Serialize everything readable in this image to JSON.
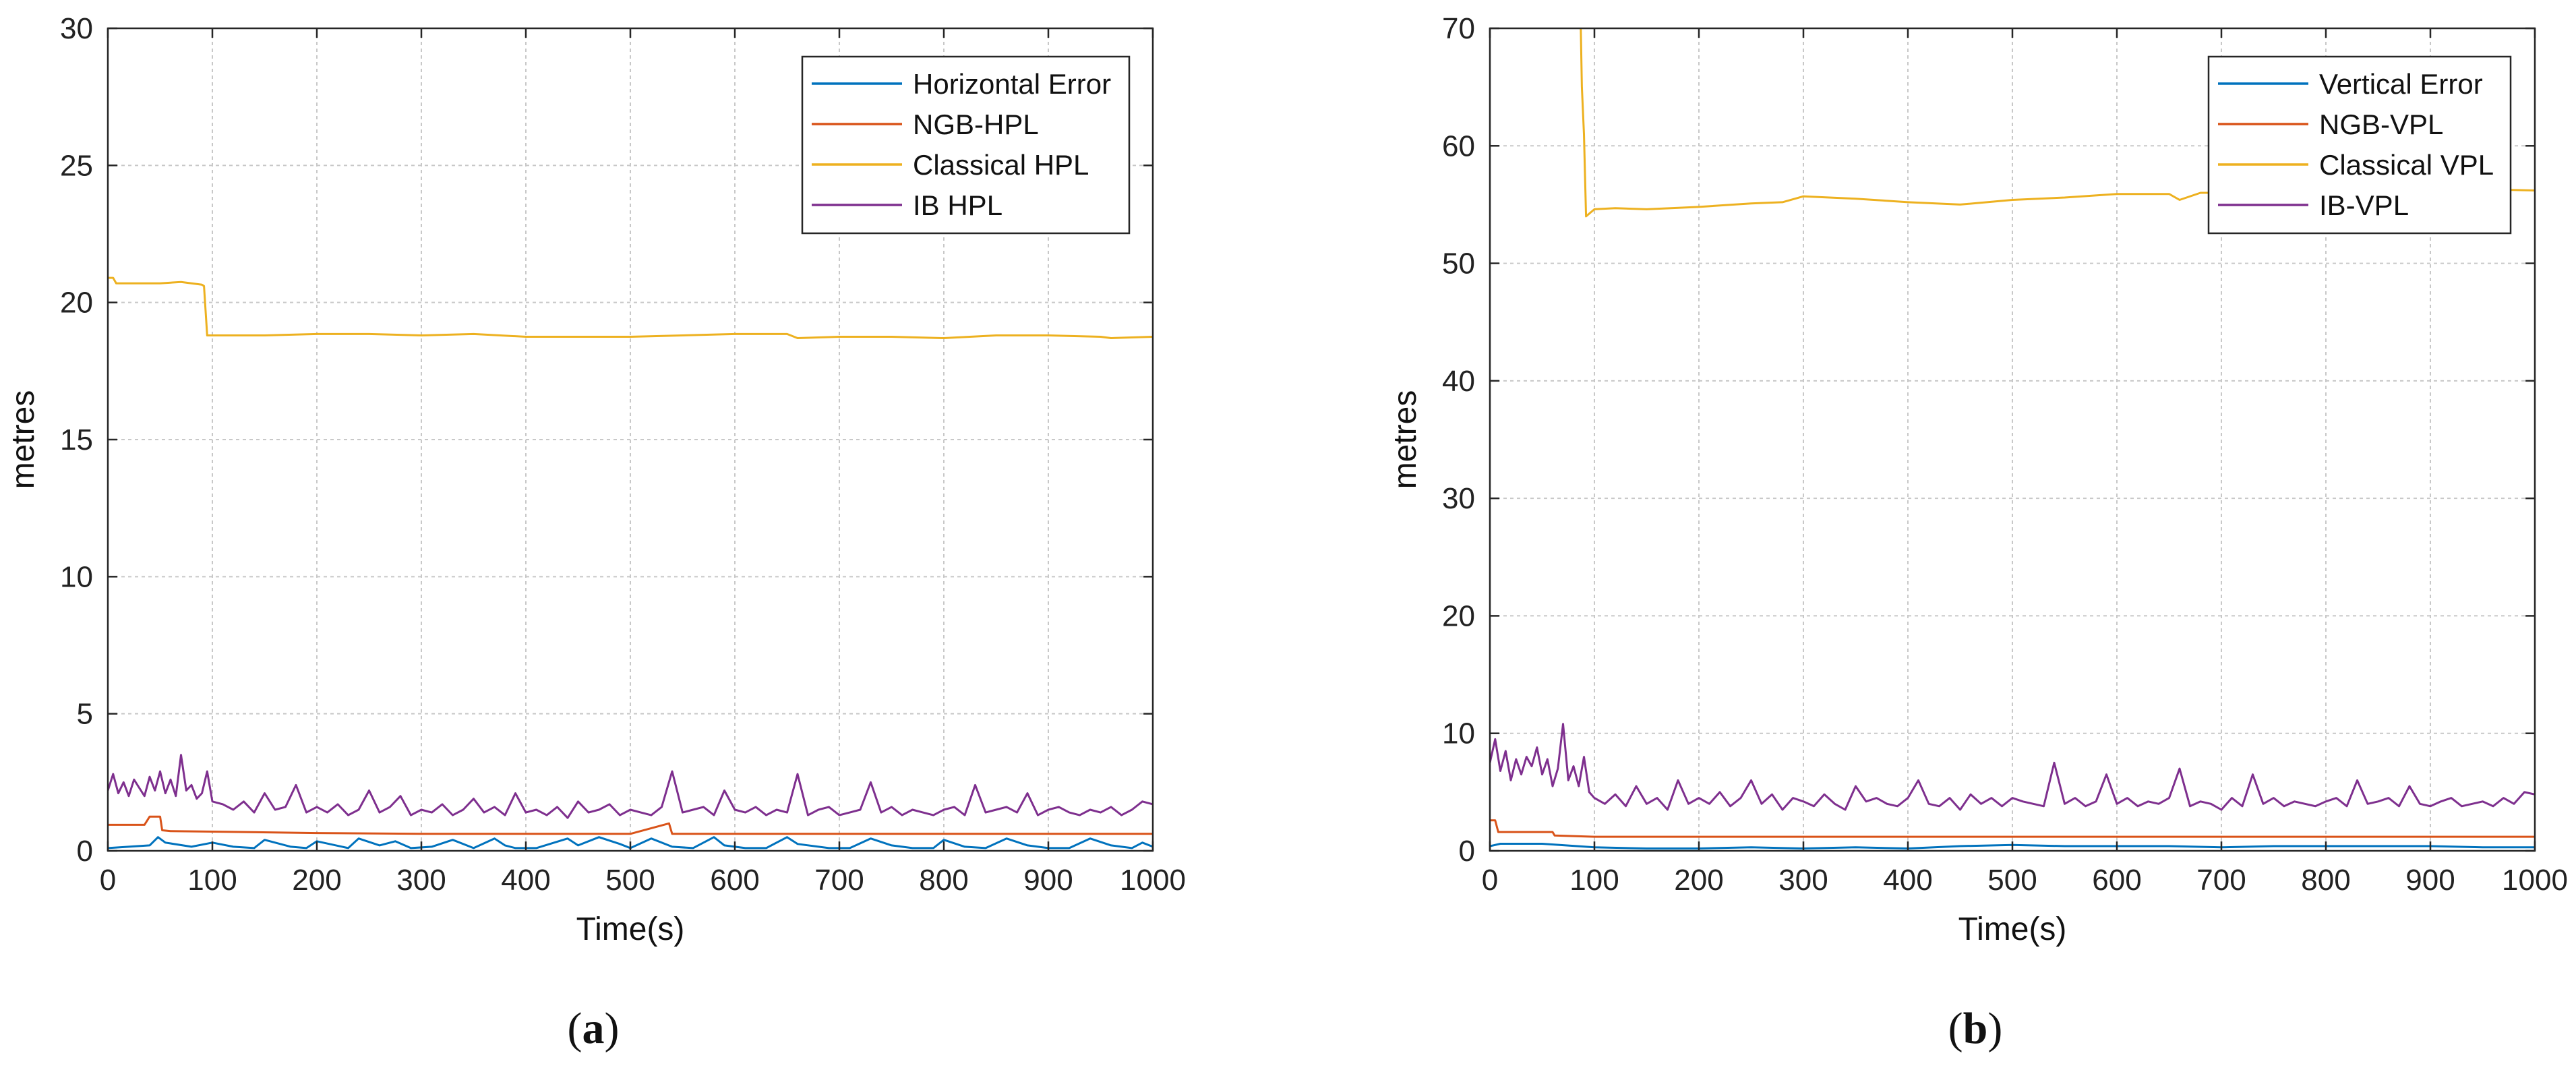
{
  "colors": {
    "error": "#0072BD",
    "ngb": "#D95319",
    "classical": "#EDB120",
    "ib": "#7E2F8E",
    "grid": "#c8c8c8",
    "axis": "#262626"
  },
  "chart_data": [
    {
      "type": "line",
      "label": "(a)",
      "label_letter": "a",
      "xlabel": "Time(s)",
      "ylabel": "metres",
      "xlim": [
        0,
        1000
      ],
      "ylim": [
        0,
        30
      ],
      "xticks": [
        0,
        100,
        200,
        300,
        400,
        500,
        600,
        700,
        800,
        900,
        1000
      ],
      "yticks": [
        0,
        5,
        10,
        15,
        20,
        25,
        30
      ],
      "grid": true,
      "legend_position": "top-right",
      "series": [
        {
          "name": "Horizontal Error",
          "color_key": "error",
          "x": [
            0,
            20,
            40,
            48,
            55,
            80,
            100,
            120,
            140,
            150,
            175,
            190,
            200,
            230,
            240,
            260,
            275,
            290,
            310,
            330,
            350,
            370,
            380,
            390,
            410,
            440,
            450,
            470,
            490,
            500,
            520,
            540,
            560,
            580,
            590,
            610,
            630,
            650,
            660,
            690,
            710,
            730,
            750,
            770,
            790,
            800,
            820,
            840,
            860,
            880,
            900,
            920,
            940,
            960,
            980,
            990,
            1000
          ],
          "values": [
            0.1,
            0.15,
            0.2,
            0.5,
            0.3,
            0.15,
            0.3,
            0.15,
            0.1,
            0.4,
            0.15,
            0.1,
            0.35,
            0.1,
            0.45,
            0.2,
            0.35,
            0.1,
            0.15,
            0.4,
            0.1,
            0.45,
            0.2,
            0.1,
            0.1,
            0.45,
            0.2,
            0.5,
            0.25,
            0.1,
            0.45,
            0.15,
            0.1,
            0.5,
            0.2,
            0.1,
            0.1,
            0.5,
            0.25,
            0.1,
            0.1,
            0.45,
            0.2,
            0.1,
            0.1,
            0.4,
            0.15,
            0.1,
            0.45,
            0.2,
            0.1,
            0.1,
            0.45,
            0.2,
            0.1,
            0.3,
            0.15
          ]
        },
        {
          "name": "NGB-HPL",
          "color_key": "ngb",
          "x": [
            0,
            5,
            35,
            40,
            50,
            52,
            60,
            100,
            200,
            300,
            400,
            500,
            537,
            540,
            600,
            700,
            800,
            900,
            1000
          ],
          "values": [
            0.95,
            0.95,
            0.95,
            1.25,
            1.25,
            0.75,
            0.72,
            0.7,
            0.65,
            0.62,
            0.62,
            0.62,
            1.0,
            0.62,
            0.62,
            0.62,
            0.62,
            0.62,
            0.62
          ]
        },
        {
          "name": "Classical HPL",
          "color_key": "classical",
          "x": [
            0,
            5,
            8,
            30,
            50,
            70,
            90,
            92,
            95,
            150,
            200,
            250,
            300,
            350,
            400,
            450,
            500,
            550,
            600,
            650,
            660,
            700,
            750,
            800,
            850,
            900,
            950,
            960,
            1000
          ],
          "values": [
            20.9,
            20.9,
            20.7,
            20.7,
            20.7,
            20.75,
            20.65,
            20.6,
            18.8,
            18.8,
            18.85,
            18.85,
            18.8,
            18.85,
            18.75,
            18.75,
            18.75,
            18.8,
            18.85,
            18.85,
            18.7,
            18.75,
            18.75,
            18.7,
            18.8,
            18.8,
            18.75,
            18.7,
            18.75
          ]
        },
        {
          "name": "IB HPL",
          "color_key": "ib",
          "x": [
            0,
            5,
            10,
            15,
            20,
            25,
            30,
            35,
            40,
            45,
            50,
            55,
            60,
            65,
            70,
            75,
            80,
            85,
            90,
            95,
            100,
            110,
            120,
            130,
            140,
            150,
            160,
            170,
            180,
            190,
            200,
            210,
            220,
            230,
            240,
            250,
            260,
            270,
            280,
            290,
            300,
            310,
            320,
            330,
            340,
            350,
            360,
            370,
            380,
            390,
            400,
            410,
            420,
            430,
            440,
            450,
            460,
            470,
            480,
            490,
            500,
            510,
            520,
            530,
            540,
            550,
            560,
            570,
            580,
            590,
            600,
            610,
            620,
            630,
            640,
            650,
            660,
            670,
            680,
            690,
            700,
            710,
            720,
            730,
            740,
            750,
            760,
            770,
            780,
            790,
            800,
            810,
            820,
            830,
            840,
            850,
            860,
            870,
            880,
            890,
            900,
            910,
            920,
            930,
            940,
            950,
            960,
            970,
            980,
            990,
            1000
          ],
          "values": [
            2.2,
            2.8,
            2.1,
            2.5,
            2.0,
            2.6,
            2.3,
            2.0,
            2.7,
            2.2,
            2.9,
            2.1,
            2.6,
            2.0,
            3.5,
            2.2,
            2.4,
            1.9,
            2.1,
            2.9,
            1.8,
            1.7,
            1.5,
            1.8,
            1.4,
            2.1,
            1.5,
            1.6,
            2.4,
            1.4,
            1.6,
            1.4,
            1.7,
            1.3,
            1.5,
            2.2,
            1.4,
            1.6,
            2.0,
            1.3,
            1.5,
            1.4,
            1.7,
            1.3,
            1.5,
            1.9,
            1.4,
            1.6,
            1.3,
            2.1,
            1.4,
            1.5,
            1.3,
            1.6,
            1.2,
            1.8,
            1.4,
            1.5,
            1.7,
            1.3,
            1.5,
            1.4,
            1.3,
            1.6,
            2.9,
            1.4,
            1.5,
            1.6,
            1.3,
            2.2,
            1.5,
            1.4,
            1.6,
            1.3,
            1.5,
            1.4,
            2.8,
            1.3,
            1.5,
            1.6,
            1.3,
            1.4,
            1.5,
            2.5,
            1.4,
            1.6,
            1.3,
            1.5,
            1.4,
            1.3,
            1.5,
            1.6,
            1.3,
            2.4,
            1.4,
            1.5,
            1.6,
            1.4,
            2.1,
            1.3,
            1.5,
            1.6,
            1.4,
            1.3,
            1.5,
            1.4,
            1.6,
            1.3,
            1.5,
            1.8,
            1.7
          ]
        }
      ]
    },
    {
      "type": "line",
      "label": "(b)",
      "label_letter": "b",
      "xlabel": "Time(s)",
      "ylabel": "metres",
      "xlim": [
        0,
        1000
      ],
      "ylim": [
        0,
        70
      ],
      "xticks": [
        0,
        100,
        200,
        300,
        400,
        500,
        600,
        700,
        800,
        900,
        1000
      ],
      "yticks": [
        0,
        10,
        20,
        30,
        40,
        50,
        60,
        70
      ],
      "grid": true,
      "legend_position": "top-right",
      "series": [
        {
          "name": "Vertical Error",
          "color_key": "error",
          "x": [
            0,
            10,
            50,
            100,
            150,
            200,
            250,
            300,
            350,
            400,
            450,
            500,
            550,
            600,
            650,
            700,
            750,
            800,
            850,
            900,
            950,
            1000
          ],
          "values": [
            0.4,
            0.6,
            0.6,
            0.3,
            0.2,
            0.2,
            0.3,
            0.2,
            0.3,
            0.2,
            0.4,
            0.5,
            0.4,
            0.4,
            0.4,
            0.3,
            0.4,
            0.4,
            0.4,
            0.4,
            0.3,
            0.3
          ]
        },
        {
          "name": "NGB-VPL",
          "color_key": "ngb",
          "x": [
            0,
            5,
            8,
            60,
            62,
            100,
            200,
            300,
            400,
            500,
            600,
            700,
            800,
            900,
            1000
          ],
          "values": [
            2.6,
            2.6,
            1.6,
            1.6,
            1.3,
            1.2,
            1.2,
            1.2,
            1.2,
            1.2,
            1.2,
            1.2,
            1.2,
            1.2,
            1.2
          ]
        },
        {
          "name": "Classical VPL",
          "color_key": "classical",
          "x": [
            87,
            88,
            90,
            92,
            100,
            120,
            150,
            200,
            250,
            280,
            300,
            350,
            400,
            450,
            500,
            550,
            600,
            650,
            660,
            680,
            700,
            750,
            800,
            850,
            900,
            950,
            1000
          ],
          "values": [
            70,
            65,
            61,
            54,
            54.6,
            54.7,
            54.6,
            54.8,
            55.1,
            55.2,
            55.7,
            55.5,
            55.2,
            55.0,
            55.4,
            55.6,
            55.9,
            55.9,
            55.4,
            56.0,
            56.0,
            56.0,
            55.9,
            56.1,
            56.1,
            56.3,
            56.2
          ]
        },
        {
          "name": "IB-VPL",
          "color_key": "ib",
          "x": [
            0,
            5,
            10,
            15,
            20,
            25,
            30,
            35,
            40,
            45,
            50,
            55,
            60,
            65,
            70,
            75,
            80,
            85,
            90,
            95,
            100,
            110,
            120,
            130,
            140,
            150,
            160,
            170,
            180,
            190,
            200,
            210,
            220,
            230,
            240,
            250,
            260,
            270,
            280,
            290,
            300,
            310,
            320,
            330,
            340,
            350,
            360,
            370,
            380,
            390,
            400,
            410,
            420,
            430,
            440,
            450,
            460,
            470,
            480,
            490,
            500,
            510,
            520,
            530,
            540,
            550,
            560,
            570,
            580,
            590,
            600,
            610,
            620,
            630,
            640,
            650,
            660,
            670,
            680,
            690,
            700,
            710,
            720,
            730,
            740,
            750,
            760,
            770,
            780,
            790,
            800,
            810,
            820,
            830,
            840,
            850,
            860,
            870,
            880,
            890,
            900,
            910,
            920,
            930,
            940,
            950,
            960,
            970,
            980,
            990,
            1000
          ],
          "values": [
            7.5,
            9.5,
            6.8,
            8.5,
            6.0,
            7.8,
            6.5,
            8.0,
            7.2,
            8.8,
            6.5,
            7.8,
            5.5,
            7.0,
            10.8,
            6.0,
            7.2,
            5.5,
            8.0,
            5.0,
            4.5,
            4.0,
            4.8,
            3.8,
            5.5,
            4.0,
            4.5,
            3.5,
            6.0,
            4.0,
            4.5,
            4.0,
            5.0,
            3.8,
            4.5,
            6.0,
            4.0,
            4.8,
            3.5,
            4.5,
            4.2,
            3.8,
            4.8,
            4.0,
            3.5,
            5.5,
            4.2,
            4.5,
            4.0,
            3.8,
            4.5,
            6.0,
            4.0,
            3.8,
            4.5,
            3.5,
            4.8,
            4.0,
            4.5,
            3.8,
            4.5,
            4.2,
            4.0,
            3.8,
            7.5,
            4.0,
            4.5,
            3.8,
            4.2,
            6.5,
            4.0,
            4.5,
            3.8,
            4.2,
            4.0,
            4.5,
            7.0,
            3.8,
            4.2,
            4.0,
            3.5,
            4.5,
            3.8,
            6.5,
            4.0,
            4.5,
            3.8,
            4.2,
            4.0,
            3.8,
            4.2,
            4.5,
            3.8,
            6.0,
            4.0,
            4.2,
            4.5,
            3.8,
            5.5,
            4.0,
            3.8,
            4.2,
            4.5,
            3.8,
            4.0,
            4.2,
            3.8,
            4.5,
            4.0,
            5.0,
            4.8
          ]
        }
      ]
    }
  ]
}
